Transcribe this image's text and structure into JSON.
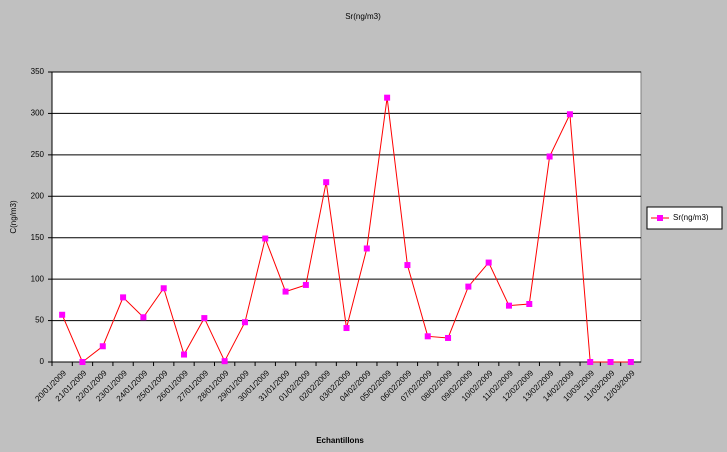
{
  "chart_data": {
    "type": "line",
    "title": "Sr(ng/m3)",
    "x_label": "Echantillons",
    "y_label": "C(ng/m3)",
    "categories": [
      "20/01/2009",
      "21/01/2009",
      "22/01/2009",
      "23/01/2009",
      "24/01/2009",
      "25/01/2009",
      "26/01/2009",
      "27/01/2009",
      "28/01/2009",
      "29/01/2009",
      "30/01/2009",
      "31/01/2009",
      "01/02/2009",
      "02/02/2009",
      "03/02/2009",
      "04/02/2009",
      "05/02/2009",
      "06/02/2009",
      "07/02/2009",
      "08/02/2009",
      "09/02/2009",
      "10/02/2009",
      "11/02/2009",
      "12/02/2009",
      "13/02/2009",
      "14/02/2009",
      "10/03/2009",
      "11/03/2009",
      "12/03/2009"
    ],
    "series": [
      {
        "name": "Sr(ng/m3)",
        "color": "#ff0000",
        "marker_color": "#ff00ff",
        "values": [
          57,
          0,
          19,
          78,
          54,
          89,
          9,
          53,
          1,
          48,
          149,
          85,
          93,
          217,
          41,
          137,
          319,
          117,
          31,
          29,
          91,
          120,
          68,
          70,
          248,
          299,
          0,
          0,
          0
        ]
      }
    ],
    "ylim": [
      0,
      350
    ],
    "yticks": [
      0,
      50,
      100,
      150,
      200,
      250,
      300,
      350
    ],
    "grid": true,
    "legend": "right"
  }
}
